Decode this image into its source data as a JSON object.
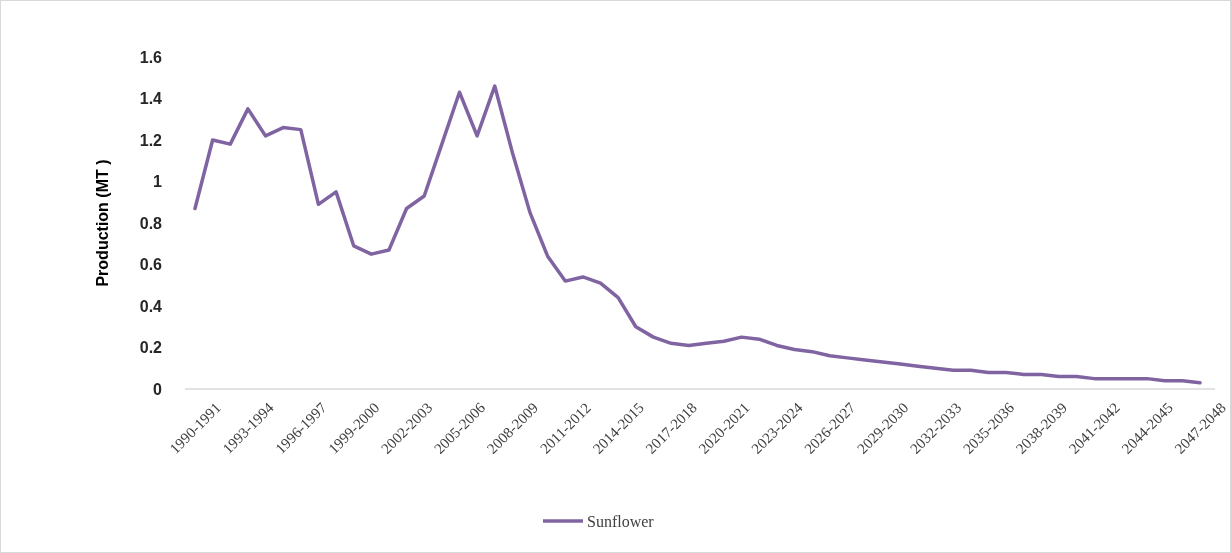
{
  "chart_data": {
    "type": "line",
    "ylabel": "Production (MT )",
    "categories": [
      "1990-1991",
      null,
      null,
      "1993-1994",
      null,
      null,
      "1996-1997",
      null,
      null,
      "1999-2000",
      null,
      null,
      "2002-2003",
      null,
      null,
      "2005-2006",
      null,
      null,
      "2008-2009",
      null,
      null,
      "2011-2012",
      null,
      null,
      "2014-2015",
      null,
      null,
      "2017-2018",
      null,
      null,
      "2020-2021",
      null,
      null,
      "2023-2024",
      null,
      null,
      "2026-2027",
      null,
      null,
      "2029-2030",
      null,
      null,
      "2032-2033",
      null,
      null,
      "2035-2036",
      null,
      null,
      "2038-2039",
      null,
      null,
      "2041-2042",
      null,
      null,
      "2044-2045",
      null,
      null,
      "2047-2048"
    ],
    "series": [
      {
        "name": "Sunflower",
        "color": "#8064a2",
        "values": [
          0.87,
          1.2,
          1.18,
          1.35,
          1.22,
          1.26,
          1.25,
          0.89,
          0.95,
          0.69,
          0.65,
          0.67,
          0.87,
          0.93,
          1.18,
          1.43,
          1.22,
          1.46,
          1.14,
          0.85,
          0.64,
          0.52,
          0.54,
          0.51,
          0.44,
          0.3,
          0.25,
          0.22,
          0.21,
          0.22,
          0.23,
          0.25,
          0.24,
          0.21,
          0.19,
          0.18,
          0.16,
          0.15,
          0.14,
          0.13,
          0.12,
          0.11,
          0.1,
          0.09,
          0.09,
          0.08,
          0.08,
          0.07,
          0.07,
          0.06,
          0.06,
          0.05,
          0.05,
          0.05,
          0.05,
          0.04,
          0.04,
          0.03
        ]
      }
    ],
    "ylim": [
      0,
      1.6
    ],
    "yticks": [
      0,
      0.2,
      0.4,
      0.6,
      0.8,
      1,
      1.2,
      1.4,
      1.6
    ],
    "grid": false,
    "legend": "bottom",
    "marker": "none",
    "line_style": "solid"
  }
}
